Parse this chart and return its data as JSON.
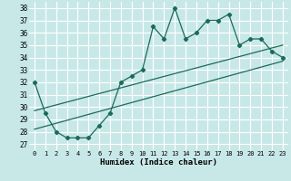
{
  "xlabel": "Humidex (Indice chaleur)",
  "bg_color": "#c8e8e8",
  "grid_color": "#ffffff",
  "line_color": "#1a6b5a",
  "xlim": [
    -0.5,
    23.5
  ],
  "ylim": [
    26.5,
    38.5
  ],
  "xticks": [
    0,
    1,
    2,
    3,
    4,
    5,
    6,
    7,
    8,
    9,
    10,
    11,
    12,
    13,
    14,
    15,
    16,
    17,
    18,
    19,
    20,
    21,
    22,
    23
  ],
  "yticks": [
    27,
    28,
    29,
    30,
    31,
    32,
    33,
    34,
    35,
    36,
    37,
    38
  ],
  "main_y": [
    32,
    29.5,
    28,
    27.5,
    27.5,
    27.5,
    28.5,
    29.5,
    32,
    32.5,
    33,
    36.5,
    35.5,
    38,
    35.5,
    36,
    37,
    37,
    37.5,
    35,
    35.5,
    35.5,
    34.5,
    34
  ],
  "trend1_x": [
    0,
    23
  ],
  "trend1_y": [
    29.7,
    35.0
  ],
  "trend2_x": [
    0,
    23
  ],
  "trend2_y": [
    28.2,
    33.7
  ]
}
